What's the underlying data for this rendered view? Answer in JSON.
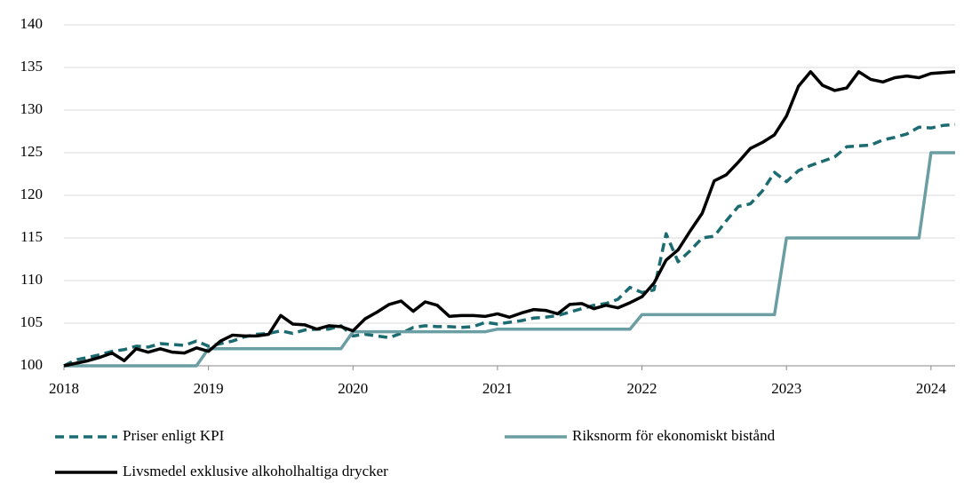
{
  "chart_data": {
    "type": "line",
    "x": [
      2018,
      2018.083,
      2018.167,
      2018.25,
      2018.333,
      2018.417,
      2018.5,
      2018.583,
      2018.667,
      2018.75,
      2018.833,
      2018.917,
      2019,
      2019.083,
      2019.167,
      2019.25,
      2019.333,
      2019.417,
      2019.5,
      2019.583,
      2019.667,
      2019.75,
      2019.833,
      2019.917,
      2020,
      2020.083,
      2020.167,
      2020.25,
      2020.333,
      2020.417,
      2020.5,
      2020.583,
      2020.667,
      2020.75,
      2020.833,
      2020.917,
      2021,
      2021.083,
      2021.167,
      2021.25,
      2021.333,
      2021.417,
      2021.5,
      2021.583,
      2021.667,
      2021.75,
      2021.833,
      2021.917,
      2022,
      2022.083,
      2022.167,
      2022.25,
      2022.333,
      2022.417,
      2022.5,
      2022.583,
      2022.667,
      2022.75,
      2022.833,
      2022.917,
      2023,
      2023.083,
      2023.167,
      2023.25,
      2023.333,
      2023.417,
      2023.5,
      2023.583,
      2023.667,
      2023.75,
      2023.833,
      2023.917,
      2024,
      2024.083,
      2024.167
    ],
    "series": [
      {
        "name": "Priser enligt KPI",
        "color": "#1b6b70",
        "style": "dashed",
        "values": [
          100,
          100.7,
          101,
          101.3,
          101.7,
          101.9,
          102.3,
          102.2,
          102.6,
          102.5,
          102.4,
          102.9,
          102.3,
          102.6,
          102.9,
          103.4,
          103.7,
          103.8,
          104.1,
          103.8,
          104.2,
          104.3,
          104.3,
          104.7,
          103.5,
          103.7,
          103.5,
          103.3,
          103.8,
          104.5,
          104.7,
          104.6,
          104.6,
          104.5,
          104.6,
          105.1,
          104.9,
          105.1,
          105.3,
          105.6,
          105.7,
          105.9,
          106.3,
          106.7,
          107.1,
          107.3,
          107.8,
          109.2,
          108.6,
          108.9,
          115.5,
          112.2,
          113.5,
          115,
          115.2,
          117,
          118.7,
          119,
          120.5,
          122.7,
          121.6,
          122.9,
          123.5,
          124,
          124.5,
          125.7,
          125.8,
          125.9,
          126.5,
          126.8,
          127.2,
          128,
          127.9,
          128.2,
          128.3
        ]
      },
      {
        "name": "Riksnorm för ekonomiskt bistånd",
        "color": "#6b9ea3",
        "style": "solid",
        "values": [
          100,
          100,
          100,
          100,
          100,
          100,
          100,
          100,
          100,
          100,
          100,
          100,
          102,
          102,
          102,
          102,
          102,
          102,
          102,
          102,
          102,
          102,
          102,
          102,
          104,
          104,
          104,
          104,
          104,
          104,
          104,
          104,
          104,
          104,
          104,
          104,
          104.3,
          104.3,
          104.3,
          104.3,
          104.3,
          104.3,
          104.3,
          104.3,
          104.3,
          104.3,
          104.3,
          104.3,
          106,
          106,
          106,
          106,
          106,
          106,
          106,
          106,
          106,
          106,
          106,
          106,
          115,
          115,
          115,
          115,
          115,
          115,
          115,
          115,
          115,
          115,
          115,
          115,
          125,
          125,
          125
        ]
      },
      {
        "name": "Livsmedel exklusive alkoholhaltiga drycker",
        "color": "#000000",
        "style": "solid",
        "values": [
          100,
          100.3,
          100.6,
          101,
          101.5,
          100.6,
          102,
          101.6,
          102,
          101.6,
          101.5,
          102.1,
          101.7,
          102.9,
          103.6,
          103.5,
          103.5,
          103.7,
          105.9,
          104.9,
          104.8,
          104.3,
          104.7,
          104.6,
          104.1,
          105.5,
          106.3,
          107.2,
          107.6,
          106.4,
          107.5,
          107.1,
          105.8,
          105.9,
          105.9,
          105.8,
          106.1,
          105.7,
          106.2,
          106.6,
          106.5,
          106.1,
          107.2,
          107.3,
          106.7,
          107.1,
          106.8,
          107.4,
          108.1,
          109.7,
          112.4,
          113.6,
          115.8,
          117.9,
          121.7,
          122.4,
          123.9,
          125.5,
          126.2,
          127.1,
          129.3,
          132.8,
          134.5,
          132.9,
          132.3,
          132.6,
          134.5,
          133.6,
          133.3,
          133.8,
          134,
          133.8,
          134.3,
          134.4,
          134.5
        ]
      }
    ],
    "xlim": [
      2018,
      2024.167
    ],
    "xticks": [
      2018,
      2019,
      2020,
      2021,
      2022,
      2023,
      2024
    ],
    "ylim": [
      100,
      140
    ],
    "yticks": [
      100,
      105,
      110,
      115,
      120,
      125,
      130,
      135,
      140
    ],
    "grid": true,
    "legend": "bottom"
  }
}
